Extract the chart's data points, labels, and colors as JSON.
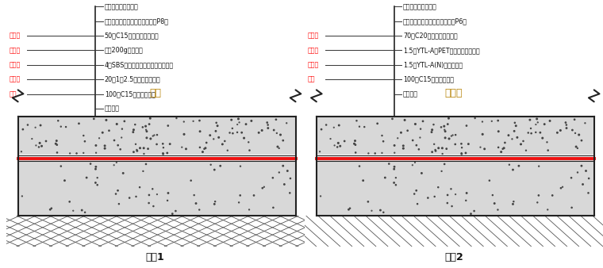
{
  "bg_color": "#ffffff",
  "diagram1": {
    "title": "做法1",
    "slab_label": "筏板",
    "slab_color": "#b8860b",
    "soil_hatch": "diamond",
    "left_labels": [
      {
        "text": "保护层",
        "color": "#ff0000",
        "row": 2
      },
      {
        "text": "隔离层",
        "color": "#ff0000",
        "row": 3
      },
      {
        "text": "防水层",
        "color": "#ff0000",
        "row": 4
      },
      {
        "text": "找平层",
        "color": "#ff0000",
        "row": 5
      },
      {
        "text": "垫层",
        "color": "#ff0000",
        "row": 6
      }
    ],
    "right_labels": [
      {
        "text": "地面（见工程做法）",
        "row": 0
      },
      {
        "text": "抗渗钢筋混凝土底板（抗渗等级P8）",
        "row": 1
      },
      {
        "text": "50厚C15细石混凝土保护层",
        "row": 2
      },
      {
        "text": "花铺200g油毡一道",
        "row": 3
      },
      {
        "text": "4厚SBS改性沥青防水卷材（聚酯胎）",
        "row": 4
      },
      {
        "text": "20厚1：2.5水泥砂浆找平层",
        "row": 5
      },
      {
        "text": "100厚C15素混凝土垫层",
        "row": 6
      },
      {
        "text": "素土夯实",
        "row": 7
      }
    ]
  },
  "diagram2": {
    "title": "做法2",
    "slab_label": "止水板",
    "slab_color": "#b8860b",
    "soil_hatch": "diagonal",
    "left_labels": [
      {
        "text": "保护层",
        "color": "#ff0000",
        "row": 2
      },
      {
        "text": "防水层",
        "color": "#ff0000",
        "row": 3
      },
      {
        "text": "防水层",
        "color": "#ff0000",
        "row": 4
      },
      {
        "text": "垫层",
        "color": "#ff0000",
        "row": 5
      }
    ],
    "right_labels": [
      {
        "text": "地面（见工程做法）",
        "row": 0
      },
      {
        "text": "抗渗钢筋混凝土底板（抗渗等级P6）",
        "row": 1
      },
      {
        "text": "70厚C20细石混凝土保护层",
        "row": 2
      },
      {
        "text": "1.5厚YTL-A（PET）自粘卷材防水层",
        "row": 3
      },
      {
        "text": "1.5厚YTL-A(N)卷材防水层",
        "row": 4
      },
      {
        "text": "100厚C15素混凝土垫层",
        "row": 5
      },
      {
        "text": "素土夯实",
        "row": 6
      }
    ]
  }
}
